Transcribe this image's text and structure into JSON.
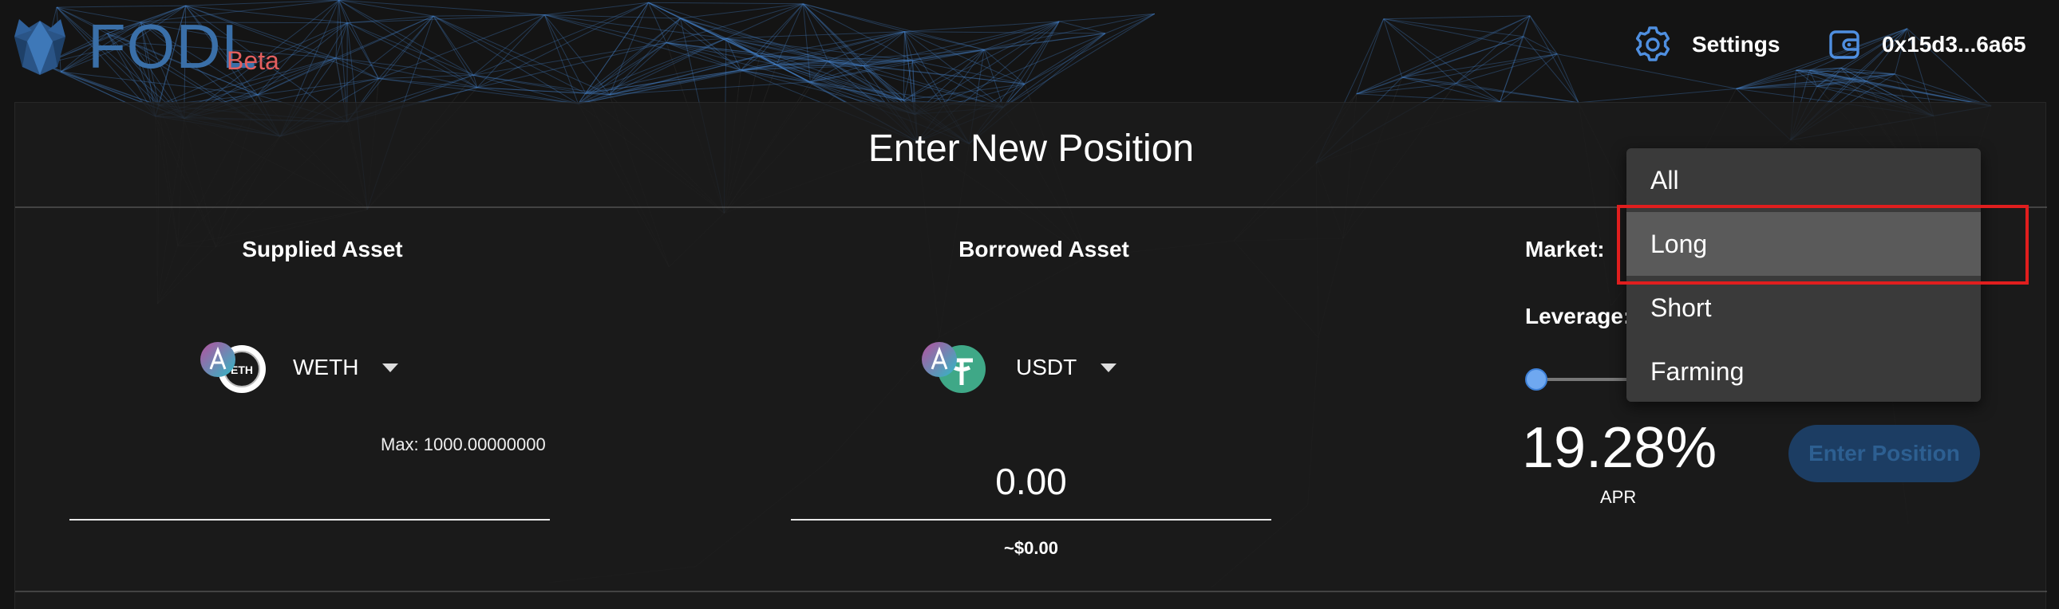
{
  "header": {
    "brand": "FODL",
    "badge": "Beta",
    "settings_label": "Settings",
    "wallet_address": "0x15d3...6a65"
  },
  "panel": {
    "title": "Enter New Position",
    "supplied": {
      "label": "Supplied Asset",
      "asset": "WETH",
      "logo_text": "ETH",
      "max_label": "Max: 1000.00000000",
      "amount_value": "",
      "amount_placeholder": ""
    },
    "borrowed": {
      "label": "Borrowed Asset",
      "asset": "USDT",
      "amount_value": "0.00",
      "usd_value": "~$0.00"
    },
    "market": {
      "label": "Market:"
    },
    "leverage": {
      "label": "Leverage:",
      "level": 0
    },
    "apr": {
      "value": "19.28%",
      "label": "APR"
    },
    "enter_button": "Enter Position"
  },
  "market_dropdown": {
    "options": [
      "All",
      "Long",
      "Short",
      "Farming"
    ],
    "selected": "Long"
  },
  "colors": {
    "brand_blue": "#3a6fa8",
    "beta_red": "#e45f5f",
    "slider_blue": "#6fa8f0",
    "highlight_red": "#e01e1e",
    "button_disabled": "#1c3d63"
  }
}
